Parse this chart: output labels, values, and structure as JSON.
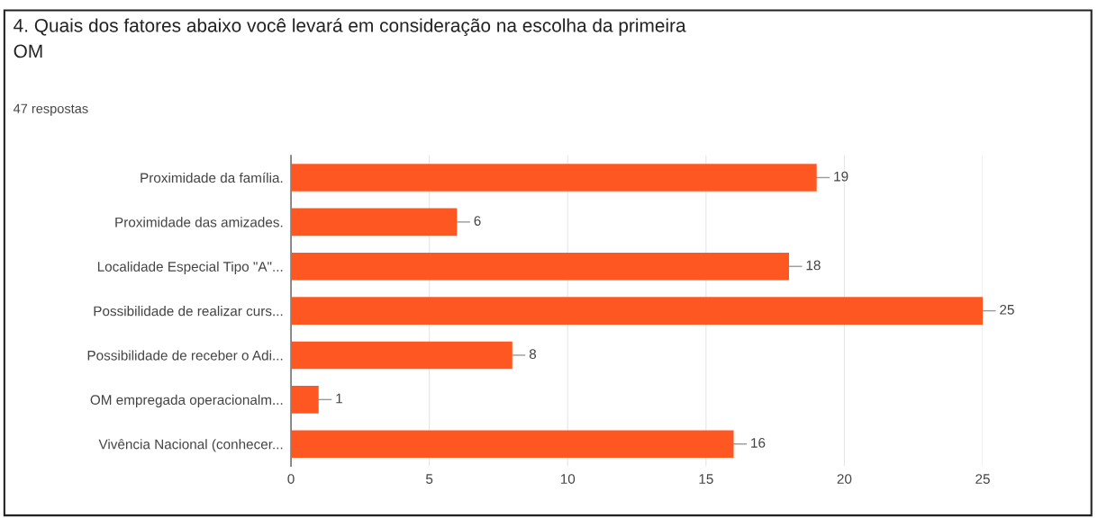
{
  "chart_data": {
    "type": "bar",
    "orientation": "horizontal",
    "title": "4. Quais dos fatores abaixo você levará em consideração na escolha da primeira\nOM",
    "subtitle": "47 respostas",
    "categories": [
      "Proximidade da família.",
      "Proximidade das amizades.",
      "Localidade Especial Tipo \"A\"...",
      "Possibilidade de realizar curs...",
      "Possibilidade de receber o Adi...",
      "OM empregada operacionalm...",
      "Vivência Nacional (conhecer..."
    ],
    "values": [
      19,
      6,
      18,
      25,
      8,
      1,
      16
    ],
    "color": "#ff5722",
    "data_labels": true,
    "xlim": [
      0,
      25
    ],
    "xticks": [
      0,
      5,
      10,
      15,
      20,
      25
    ],
    "grid": "x",
    "legend": false
  }
}
